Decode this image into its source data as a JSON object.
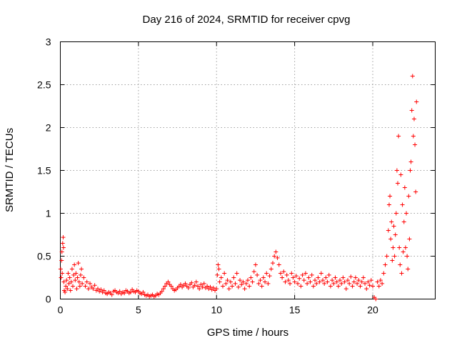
{
  "chart_data": {
    "type": "scatter",
    "marker": "+",
    "title": "Day 216 of 2024, SRMTID for receiver cpvg",
    "xlabel": "GPS time / hours",
    "ylabel": "SRMTID / TECUs",
    "xlim": [
      0,
      24
    ],
    "ylim": [
      0,
      3
    ],
    "xticks": [
      0,
      5,
      10,
      15,
      20
    ],
    "yticks": [
      0,
      0.5,
      1,
      1.5,
      2,
      2.5,
      3
    ],
    "xtick_labels": [
      "0",
      "5",
      "10",
      "15",
      "20"
    ],
    "ytick_labels": [
      "0",
      "0.5",
      "1",
      "1.5",
      "2",
      "2.5",
      "3"
    ],
    "grid": true,
    "series": [
      {
        "name": "SRMTID",
        "color": "#ff0000",
        "points": [
          [
            0.02,
            0.35
          ],
          [
            0.05,
            0.25
          ],
          [
            0.08,
            0.45
          ],
          [
            0.1,
            0.55
          ],
          [
            0.12,
            0.3
          ],
          [
            0.15,
            0.65
          ],
          [
            0.18,
            0.72
          ],
          [
            0.2,
            0.6
          ],
          [
            0.22,
            0.2
          ],
          [
            0.25,
            0.1
          ],
          [
            0.3,
            0.08
          ],
          [
            0.35,
            0.15
          ],
          [
            0.4,
            0.22
          ],
          [
            0.45,
            0.12
          ],
          [
            0.5,
            0.3
          ],
          [
            0.55,
            0.18
          ],
          [
            0.6,
            0.25
          ],
          [
            0.65,
            0.1
          ],
          [
            0.7,
            0.2
          ],
          [
            0.75,
            0.35
          ],
          [
            0.8,
            0.15
          ],
          [
            0.85,
            0.28
          ],
          [
            0.9,
            0.4
          ],
          [
            0.95,
            0.22
          ],
          [
            1.0,
            0.3
          ],
          [
            1.05,
            0.12
          ],
          [
            1.1,
            0.25
          ],
          [
            1.15,
            0.42
          ],
          [
            1.2,
            0.2
          ],
          [
            1.25,
            0.15
          ],
          [
            1.3,
            0.28
          ],
          [
            1.35,
            0.35
          ],
          [
            1.4,
            0.18
          ],
          [
            1.5,
            0.25
          ],
          [
            1.6,
            0.15
          ],
          [
            1.7,
            0.2
          ],
          [
            1.8,
            0.12
          ],
          [
            1.9,
            0.18
          ],
          [
            2.0,
            0.14
          ],
          [
            2.1,
            0.12
          ],
          [
            2.2,
            0.16
          ],
          [
            2.3,
            0.1
          ],
          [
            2.4,
            0.12
          ],
          [
            2.5,
            0.09
          ],
          [
            2.6,
            0.11
          ],
          [
            2.7,
            0.08
          ],
          [
            2.8,
            0.1
          ],
          [
            2.9,
            0.07
          ],
          [
            3.0,
            0.06
          ],
          [
            3.1,
            0.08
          ],
          [
            3.2,
            0.07
          ],
          [
            3.3,
            0.05
          ],
          [
            3.4,
            0.09
          ],
          [
            3.5,
            0.1
          ],
          [
            3.6,
            0.08
          ],
          [
            3.7,
            0.07
          ],
          [
            3.8,
            0.09
          ],
          [
            3.9,
            0.06
          ],
          [
            4.0,
            0.08
          ],
          [
            4.1,
            0.07
          ],
          [
            4.2,
            0.1
          ],
          [
            4.3,
            0.09
          ],
          [
            4.4,
            0.07
          ],
          [
            4.5,
            0.08
          ],
          [
            4.6,
            0.11
          ],
          [
            4.7,
            0.09
          ],
          [
            4.8,
            0.08
          ],
          [
            4.9,
            0.1
          ],
          [
            5.0,
            0.09
          ],
          [
            5.1,
            0.07
          ],
          [
            5.2,
            0.06
          ],
          [
            5.3,
            0.08
          ],
          [
            5.4,
            0.05
          ],
          [
            5.5,
            0.04
          ],
          [
            5.6,
            0.05
          ],
          [
            5.7,
            0.03
          ],
          [
            5.8,
            0.04
          ],
          [
            5.9,
            0.05
          ],
          [
            6.0,
            0.03
          ],
          [
            6.1,
            0.04
          ],
          [
            6.2,
            0.06
          ],
          [
            6.3,
            0.05
          ],
          [
            6.4,
            0.07
          ],
          [
            6.5,
            0.09
          ],
          [
            6.6,
            0.12
          ],
          [
            6.7,
            0.15
          ],
          [
            6.8,
            0.18
          ],
          [
            6.9,
            0.2
          ],
          [
            7.0,
            0.17
          ],
          [
            7.1,
            0.15
          ],
          [
            7.2,
            0.12
          ],
          [
            7.3,
            0.1
          ],
          [
            7.4,
            0.11
          ],
          [
            7.5,
            0.13
          ],
          [
            7.6,
            0.15
          ],
          [
            7.7,
            0.17
          ],
          [
            7.8,
            0.14
          ],
          [
            7.9,
            0.16
          ],
          [
            8.0,
            0.18
          ],
          [
            8.1,
            0.15
          ],
          [
            8.2,
            0.13
          ],
          [
            8.3,
            0.17
          ],
          [
            8.4,
            0.19
          ],
          [
            8.5,
            0.14
          ],
          [
            8.6,
            0.16
          ],
          [
            8.7,
            0.2
          ],
          [
            8.8,
            0.15
          ],
          [
            8.9,
            0.12
          ],
          [
            9.0,
            0.17
          ],
          [
            9.1,
            0.14
          ],
          [
            9.2,
            0.18
          ],
          [
            9.3,
            0.13
          ],
          [
            9.4,
            0.15
          ],
          [
            9.5,
            0.12
          ],
          [
            9.6,
            0.14
          ],
          [
            9.7,
            0.11
          ],
          [
            9.8,
            0.13
          ],
          [
            9.9,
            0.1
          ],
          [
            10.0,
            0.12
          ],
          [
            10.05,
            0.28
          ],
          [
            10.1,
            0.4
          ],
          [
            10.15,
            0.35
          ],
          [
            10.2,
            0.2
          ],
          [
            10.3,
            0.25
          ],
          [
            10.4,
            0.15
          ],
          [
            10.5,
            0.3
          ],
          [
            10.6,
            0.18
          ],
          [
            10.7,
            0.22
          ],
          [
            10.8,
            0.12
          ],
          [
            10.9,
            0.2
          ],
          [
            11.0,
            0.15
          ],
          [
            11.1,
            0.25
          ],
          [
            11.2,
            0.18
          ],
          [
            11.3,
            0.3
          ],
          [
            11.4,
            0.14
          ],
          [
            11.5,
            0.22
          ],
          [
            11.6,
            0.17
          ],
          [
            11.7,
            0.2
          ],
          [
            11.8,
            0.12
          ],
          [
            11.9,
            0.18
          ],
          [
            12.0,
            0.22
          ],
          [
            12.1,
            0.15
          ],
          [
            12.2,
            0.25
          ],
          [
            12.3,
            0.2
          ],
          [
            12.4,
            0.32
          ],
          [
            12.5,
            0.4
          ],
          [
            12.6,
            0.28
          ],
          [
            12.7,
            0.18
          ],
          [
            12.8,
            0.22
          ],
          [
            12.9,
            0.15
          ],
          [
            13.0,
            0.25
          ],
          [
            13.1,
            0.2
          ],
          [
            13.2,
            0.3
          ],
          [
            13.3,
            0.18
          ],
          [
            13.4,
            0.27
          ],
          [
            13.5,
            0.35
          ],
          [
            13.6,
            0.42
          ],
          [
            13.7,
            0.5
          ],
          [
            13.8,
            0.55
          ],
          [
            13.9,
            0.48
          ],
          [
            14.0,
            0.4
          ],
          [
            14.1,
            0.3
          ],
          [
            14.2,
            0.25
          ],
          [
            14.3,
            0.32
          ],
          [
            14.4,
            0.2
          ],
          [
            14.5,
            0.28
          ],
          [
            14.6,
            0.22
          ],
          [
            14.7,
            0.18
          ],
          [
            14.8,
            0.3
          ],
          [
            14.9,
            0.25
          ],
          [
            15.0,
            0.2
          ],
          [
            15.1,
            0.27
          ],
          [
            15.2,
            0.18
          ],
          [
            15.3,
            0.24
          ],
          [
            15.4,
            0.15
          ],
          [
            15.5,
            0.28
          ],
          [
            15.6,
            0.22
          ],
          [
            15.7,
            0.3
          ],
          [
            15.8,
            0.18
          ],
          [
            15.9,
            0.25
          ],
          [
            16.0,
            0.2
          ],
          [
            16.1,
            0.28
          ],
          [
            16.2,
            0.15
          ],
          [
            16.3,
            0.22
          ],
          [
            16.4,
            0.18
          ],
          [
            16.5,
            0.25
          ],
          [
            16.6,
            0.2
          ],
          [
            16.7,
            0.3
          ],
          [
            16.8,
            0.22
          ],
          [
            16.9,
            0.18
          ],
          [
            17.0,
            0.25
          ],
          [
            17.1,
            0.2
          ],
          [
            17.2,
            0.28
          ],
          [
            17.3,
            0.15
          ],
          [
            17.4,
            0.22
          ],
          [
            17.5,
            0.18
          ],
          [
            17.6,
            0.25
          ],
          [
            17.7,
            0.2
          ],
          [
            17.8,
            0.15
          ],
          [
            17.9,
            0.22
          ],
          [
            18.0,
            0.18
          ],
          [
            18.1,
            0.25
          ],
          [
            18.2,
            0.2
          ],
          [
            18.3,
            0.12
          ],
          [
            18.4,
            0.22
          ],
          [
            18.5,
            0.18
          ],
          [
            18.6,
            0.26
          ],
          [
            18.7,
            0.15
          ],
          [
            18.8,
            0.2
          ],
          [
            18.9,
            0.25
          ],
          [
            19.0,
            0.18
          ],
          [
            19.1,
            0.22
          ],
          [
            19.2,
            0.15
          ],
          [
            19.3,
            0.2
          ],
          [
            19.4,
            0.25
          ],
          [
            19.5,
            0.18
          ],
          [
            19.6,
            0.12
          ],
          [
            19.7,
            0.2
          ],
          [
            19.8,
            0.16
          ],
          [
            19.9,
            0.22
          ],
          [
            20.0,
            0.15
          ],
          [
            20.1,
            0.02
          ],
          [
            20.2,
            0.0
          ],
          [
            20.3,
            0.2
          ],
          [
            20.4,
            0.15
          ],
          [
            20.5,
            0.22
          ],
          [
            20.6,
            0.18
          ],
          [
            20.7,
            0.3
          ],
          [
            20.8,
            0.4
          ],
          [
            20.9,
            0.5
          ],
          [
            21.0,
            0.8
          ],
          [
            21.05,
            1.1
          ],
          [
            21.1,
            1.2
          ],
          [
            21.15,
            0.7
          ],
          [
            21.2,
            0.9
          ],
          [
            21.25,
            0.45
          ],
          [
            21.3,
            0.6
          ],
          [
            21.35,
            0.85
          ],
          [
            21.4,
            0.5
          ],
          [
            21.45,
            0.75
          ],
          [
            21.5,
            1.0
          ],
          [
            21.55,
            1.5
          ],
          [
            21.6,
            1.35
          ],
          [
            21.65,
            1.9
          ],
          [
            21.7,
            0.6
          ],
          [
            21.75,
            0.4
          ],
          [
            21.8,
            1.45
          ],
          [
            21.85,
            0.3
          ],
          [
            21.9,
            1.1
          ],
          [
            21.95,
            0.55
          ],
          [
            22.0,
            0.9
          ],
          [
            22.05,
            1.3
          ],
          [
            22.1,
            0.6
          ],
          [
            22.15,
            1.0
          ],
          [
            22.2,
            0.5
          ],
          [
            22.25,
            0.35
          ],
          [
            22.3,
            1.2
          ],
          [
            22.35,
            0.7
          ],
          [
            22.4,
            1.5
          ],
          [
            22.45,
            1.6
          ],
          [
            22.5,
            2.2
          ],
          [
            22.55,
            2.6
          ],
          [
            22.6,
            1.9
          ],
          [
            22.65,
            2.1
          ],
          [
            22.7,
            1.8
          ],
          [
            22.75,
            1.25
          ],
          [
            22.8,
            2.3
          ]
        ]
      }
    ]
  }
}
